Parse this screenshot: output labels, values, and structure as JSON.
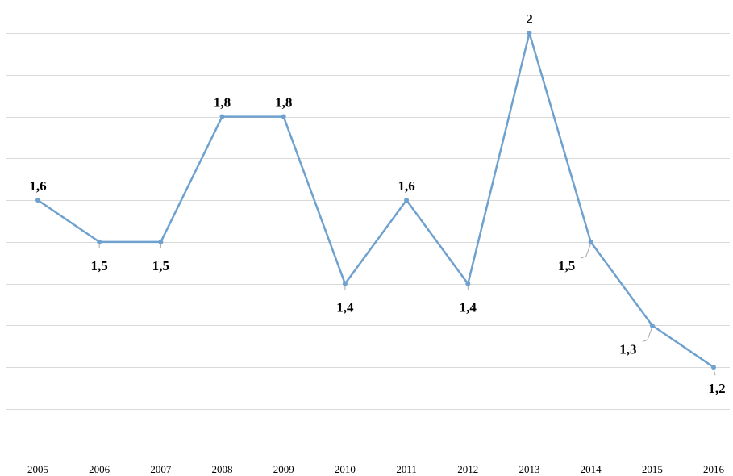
{
  "chart_data": {
    "type": "line",
    "categories": [
      "2005",
      "2006",
      "2007",
      "2008",
      "2009",
      "2010",
      "2011",
      "2012",
      "2013",
      "2014",
      "2015",
      "2016"
    ],
    "series": [
      {
        "values": [
          1.6,
          1.5,
          1.5,
          1.8,
          1.8,
          1.4,
          1.6,
          1.4,
          2.0,
          1.5,
          1.3,
          1.2
        ],
        "labels": [
          "1,6",
          "1,5",
          "1,5",
          "1,8",
          "1,8",
          "1,4",
          "1,6",
          "1,4",
          "2",
          "1,5",
          "1,3",
          "1,2"
        ],
        "color": "#6fa1cf"
      }
    ],
    "ylim": [
      1.1,
      2.0
    ],
    "grid": true,
    "legend": "none"
  }
}
